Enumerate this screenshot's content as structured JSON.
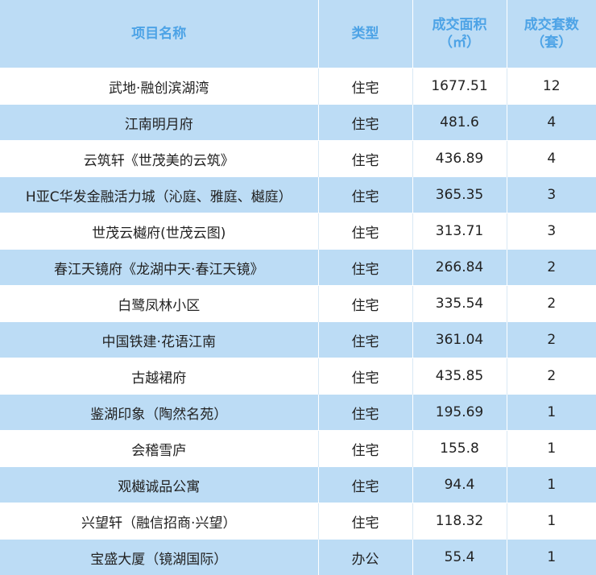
{
  "header": {
    "name": "项目名称",
    "type": "类型",
    "area_line1": "成交面积",
    "area_line2": "（㎡）",
    "count_line1": "成交套数",
    "count_line2": "（套）"
  },
  "rows": [
    {
      "name": "武地·融创滨湖湾",
      "type": "住宅",
      "area": "1677.51",
      "count": "12"
    },
    {
      "name": "江南明月府",
      "type": "住宅",
      "area": "481.6",
      "count": "4"
    },
    {
      "name": "云筑轩《世茂美的云筑》",
      "type": "住宅",
      "area": "436.89",
      "count": "4"
    },
    {
      "name": "H亚C华发金融活力城（沁庭、雅庭、樾庭）",
      "type": "住宅",
      "area": "365.35",
      "count": "3"
    },
    {
      "name": "世茂云樾府(世茂云图)",
      "type": "住宅",
      "area": "313.71",
      "count": "3"
    },
    {
      "name": "春江天镜府《龙湖中天·春江天镜》",
      "type": "住宅",
      "area": "266.84",
      "count": "2"
    },
    {
      "name": "白鹭凤林小区",
      "type": "住宅",
      "area": "335.54",
      "count": "2"
    },
    {
      "name": "中国铁建·花语江南",
      "type": "住宅",
      "area": "361.04",
      "count": "2"
    },
    {
      "name": "古越裙府",
      "type": "住宅",
      "area": "435.85",
      "count": "2"
    },
    {
      "name": "鉴湖印象（陶然名苑）",
      "type": "住宅",
      "area": "195.69",
      "count": "1"
    },
    {
      "name": "会稽雪庐",
      "type": "住宅",
      "area": "155.8",
      "count": "1"
    },
    {
      "name": "观樾诚品公寓",
      "type": "住宅",
      "area": "94.4",
      "count": "1"
    },
    {
      "name": "兴望轩（融信招商·兴望）",
      "type": "住宅",
      "area": "118.32",
      "count": "1"
    },
    {
      "name": "宝盛大厦（镜湖国际）",
      "type": "办公",
      "area": "55.4",
      "count": "1"
    }
  ],
  "colors": {
    "header_bg": "#bcdcf5",
    "header_text": "#4da3e6",
    "stripe_bg": "#bcdcf5",
    "body_text": "#222222"
  }
}
